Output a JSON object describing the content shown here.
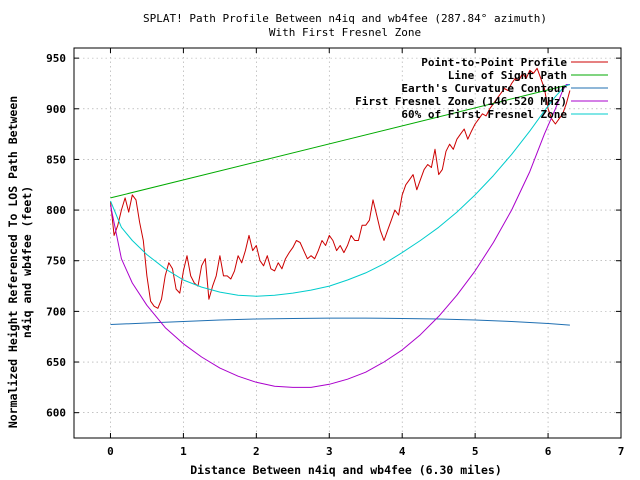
{
  "chart_data": {
    "type": "line",
    "title": "SPLAT! Path Profile Between n4iq and wb4fee (287.84° azimuth)",
    "subtitle": "With First Fresnel Zone",
    "xlabel": "Distance Between n4iq and wb4fee (6.30 miles)",
    "ylabel_line1": "Normalized Height Referenced To LOS Path Between",
    "ylabel_line2": "n4iq and wb4fee (feet)",
    "xlim": [
      -0.5,
      7
    ],
    "ylim": [
      575,
      960
    ],
    "xticks": [
      0,
      1,
      2,
      3,
      4,
      5,
      6,
      7
    ],
    "yticks": [
      600,
      650,
      700,
      750,
      800,
      850,
      900,
      950
    ],
    "grid": true,
    "legend_position": "top-right",
    "series": [
      {
        "name": "Point-to-Point Profile",
        "color": "#cc0000",
        "x": [
          0,
          0.05,
          0.1,
          0.15,
          0.2,
          0.25,
          0.3,
          0.35,
          0.4,
          0.45,
          0.5,
          0.55,
          0.6,
          0.65,
          0.7,
          0.75,
          0.8,
          0.85,
          0.9,
          0.95,
          1.0,
          1.05,
          1.1,
          1.15,
          1.2,
          1.25,
          1.3,
          1.35,
          1.4,
          1.45,
          1.5,
          1.55,
          1.6,
          1.65,
          1.7,
          1.75,
          1.8,
          1.85,
          1.9,
          1.95,
          2.0,
          2.05,
          2.1,
          2.15,
          2.2,
          2.25,
          2.3,
          2.35,
          2.4,
          2.45,
          2.5,
          2.55,
          2.6,
          2.65,
          2.7,
          2.75,
          2.8,
          2.85,
          2.9,
          2.95,
          3.0,
          3.05,
          3.1,
          3.15,
          3.2,
          3.25,
          3.3,
          3.35,
          3.4,
          3.45,
          3.5,
          3.55,
          3.6,
          3.65,
          3.7,
          3.75,
          3.8,
          3.85,
          3.9,
          3.95,
          4.0,
          4.05,
          4.1,
          4.15,
          4.2,
          4.25,
          4.3,
          4.35,
          4.4,
          4.45,
          4.5,
          4.55,
          4.6,
          4.65,
          4.7,
          4.75,
          4.8,
          4.85,
          4.9,
          4.95,
          5.0,
          5.05,
          5.1,
          5.15,
          5.2,
          5.25,
          5.3,
          5.35,
          5.4,
          5.45,
          5.5,
          5.55,
          5.6,
          5.65,
          5.7,
          5.75,
          5.8,
          5.85,
          5.9,
          5.95,
          6.0,
          6.05,
          6.1,
          6.15,
          6.2,
          6.25,
          6.3
        ],
        "y": [
          808,
          775,
          785,
          800,
          812,
          798,
          815,
          810,
          788,
          770,
          735,
          710,
          705,
          703,
          712,
          735,
          748,
          742,
          722,
          718,
          740,
          755,
          735,
          728,
          725,
          745,
          752,
          712,
          725,
          735,
          755,
          735,
          735,
          732,
          740,
          755,
          748,
          760,
          775,
          760,
          765,
          750,
          745,
          755,
          742,
          740,
          748,
          742,
          752,
          758,
          763,
          770,
          768,
          760,
          752,
          755,
          752,
          760,
          770,
          765,
          775,
          770,
          760,
          765,
          758,
          765,
          775,
          770,
          770,
          785,
          785,
          790,
          810,
          795,
          780,
          770,
          780,
          790,
          800,
          795,
          815,
          825,
          830,
          835,
          820,
          830,
          840,
          845,
          842,
          860,
          835,
          840,
          858,
          865,
          860,
          870,
          875,
          880,
          870,
          878,
          885,
          890,
          895,
          893,
          900,
          905,
          910,
          915,
          920,
          918,
          925,
          930,
          928,
          935,
          930,
          938,
          935,
          940,
          930,
          920,
          900,
          890,
          885,
          890,
          895,
          905,
          918
        ]
      },
      {
        "name": "Line of Sight Path",
        "color": "#00aa00",
        "x": [
          0,
          6.3
        ],
        "y": [
          812,
          924
        ]
      },
      {
        "name": "Earth's Curvature Contour",
        "color": "#1f6fb2",
        "x": [
          0,
          0.5,
          1.0,
          1.5,
          2.0,
          2.5,
          3.0,
          3.5,
          4.0,
          4.5,
          5.0,
          5.5,
          6.0,
          6.3
        ],
        "y": [
          687,
          688.5,
          690,
          691.5,
          692.5,
          693,
          693.4,
          693.4,
          693,
          692.5,
          691.5,
          690,
          688,
          686.5
        ]
      },
      {
        "name": "First Fresnel Zone (146.520 MHz)",
        "color": "#aa00cc",
        "x": [
          0,
          0.15,
          0.3,
          0.5,
          0.75,
          1.0,
          1.25,
          1.5,
          1.75,
          2.0,
          2.25,
          2.5,
          2.75,
          3.0,
          3.25,
          3.5,
          3.75,
          4.0,
          4.25,
          4.5,
          4.75,
          5.0,
          5.25,
          5.5,
          5.75,
          5.95,
          6.1,
          6.2,
          6.25,
          6.3
        ],
        "y": [
          805,
          752,
          728,
          706,
          684,
          668,
          655,
          644,
          636,
          630,
          626,
          625,
          625,
          628,
          633,
          640,
          650,
          662,
          677,
          695,
          716,
          740,
          768,
          800,
          838,
          875,
          900,
          918,
          924,
          924
        ]
      },
      {
        "name": "60% of First Fresnel Zone",
        "color": "#00cccc",
        "x": [
          0,
          0.15,
          0.3,
          0.5,
          0.75,
          1.0,
          1.25,
          1.5,
          1.75,
          2.0,
          2.25,
          2.5,
          2.75,
          3.0,
          3.25,
          3.5,
          3.75,
          4.0,
          4.25,
          4.5,
          4.75,
          5.0,
          5.25,
          5.5,
          5.75,
          5.95,
          6.1,
          6.2,
          6.25,
          6.3
        ],
        "y": [
          809,
          783,
          770,
          756,
          742,
          731,
          724,
          719,
          716,
          715,
          716,
          718,
          721,
          725,
          731,
          738,
          747,
          758,
          770,
          783,
          798,
          815,
          834,
          855,
          878,
          898,
          912,
          920,
          923,
          924
        ]
      }
    ]
  }
}
